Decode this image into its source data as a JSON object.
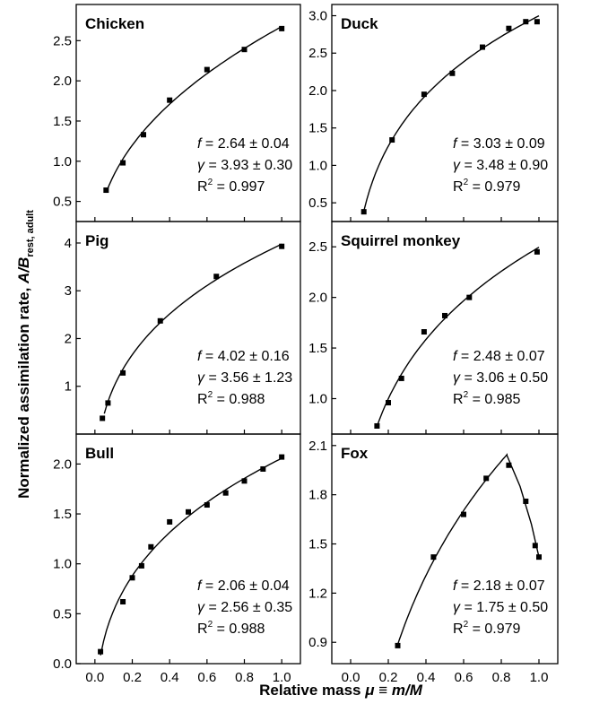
{
  "figure": {
    "ylabel_main": "Normalized assimilation rate, ",
    "ylabel_italic": "A/B",
    "ylabel_sub": "rest, adult",
    "xlabel_main": "Relative mass  ",
    "xlabel_mu": "μ",
    "xlabel_rest": " ≡ ",
    "xlabel_italic": "m/M"
  },
  "chart_data": [
    {
      "type": "scatter",
      "title": "Chicken",
      "xlim": [
        -0.1,
        1.1
      ],
      "ylim": [
        0.25,
        2.95
      ],
      "yticks": [
        "0.5",
        "1.0",
        "1.5",
        "2.0",
        "2.5"
      ],
      "ytick_values": [
        0.5,
        1.0,
        1.5,
        2.0,
        2.5
      ],
      "x": [
        0.06,
        0.15,
        0.26,
        0.4,
        0.6,
        0.8,
        1.0
      ],
      "y": [
        0.64,
        0.98,
        1.33,
        1.76,
        2.14,
        2.39,
        2.65
      ],
      "fit": {
        "f": 2.64,
        "gamma": 3.93,
        "x_start": 0.06,
        "x_end": 1.0
      },
      "stats": {
        "f": "2.64 ± 0.04",
        "gamma": "3.93 ± 0.30",
        "r2": "0.997"
      }
    },
    {
      "type": "scatter",
      "title": "Duck",
      "xlim": [
        -0.1,
        1.1
      ],
      "ylim": [
        0.25,
        3.15
      ],
      "yticks": [
        "0.5",
        "1.0",
        "1.5",
        "2.0",
        "2.5",
        "3.0"
      ],
      "ytick_values": [
        0.5,
        1.0,
        1.5,
        2.0,
        2.5,
        3.0
      ],
      "x": [
        0.07,
        0.22,
        0.39,
        0.54,
        0.7,
        0.84,
        0.93,
        0.99
      ],
      "y": [
        0.38,
        1.34,
        1.95,
        2.23,
        2.58,
        2.83,
        2.92,
        2.92
      ],
      "fit": {
        "f": 3.03,
        "gamma": 3.48,
        "x_start": 0.07,
        "x_end": 1.0
      },
      "stats": {
        "f": "3.03 ± 0.09",
        "gamma": "3.48 ± 0.90",
        "r2": "0.979"
      }
    },
    {
      "type": "scatter",
      "title": "Pig",
      "xlim": [
        -0.1,
        1.1
      ],
      "ylim": [
        0.0,
        4.45
      ],
      "yticks": [
        "1",
        "2",
        "3",
        "4"
      ],
      "ytick_values": [
        1,
        2,
        3,
        4
      ],
      "x": [
        0.04,
        0.07,
        0.15,
        0.35,
        0.65,
        1.0
      ],
      "y": [
        0.33,
        0.65,
        1.28,
        2.37,
        3.3,
        3.93
      ],
      "fit": {
        "f": 4.02,
        "gamma": 3.56,
        "x_start": 0.05,
        "x_end": 1.0
      },
      "stats": {
        "f": "4.02 ± 0.16",
        "gamma": "3.56 ± 1.23",
        "r2": "0.988"
      }
    },
    {
      "type": "scatter",
      "title": "Squirrel monkey",
      "xlim": [
        -0.1,
        1.1
      ],
      "ylim": [
        0.65,
        2.75
      ],
      "yticks": [
        "1.0",
        "1.5",
        "2.0",
        "2.5"
      ],
      "ytick_values": [
        1.0,
        1.5,
        2.0,
        2.5
      ],
      "x": [
        0.14,
        0.2,
        0.27,
        0.39,
        0.5,
        0.63,
        0.99
      ],
      "y": [
        0.73,
        0.96,
        1.2,
        1.66,
        1.82,
        2.0,
        2.45
      ],
      "fit": {
        "f": 2.48,
        "gamma": 3.06,
        "x_start": 0.14,
        "x_end": 1.0
      },
      "stats": {
        "f": "2.48 ± 0.07",
        "gamma": "3.06 ± 0.50",
        "r2": "0.985"
      }
    },
    {
      "type": "scatter",
      "title": "Bull",
      "xlim": [
        -0.1,
        1.1
      ],
      "ylim": [
        0.0,
        2.3
      ],
      "yticks": [
        "0.0",
        "0.5",
        "1.0",
        "1.5",
        "2.0"
      ],
      "ytick_values": [
        0.0,
        0.5,
        1.0,
        1.5,
        2.0
      ],
      "x": [
        0.03,
        0.15,
        0.2,
        0.25,
        0.3,
        0.4,
        0.5,
        0.6,
        0.7,
        0.8,
        0.9,
        1.0
      ],
      "y": [
        0.12,
        0.62,
        0.86,
        0.98,
        1.17,
        1.42,
        1.52,
        1.59,
        1.71,
        1.83,
        1.95,
        2.07
      ],
      "fit": {
        "f": 2.06,
        "gamma": 2.56,
        "x_start": 0.03,
        "x_end": 1.0
      },
      "stats": {
        "f": "2.06 ± 0.04",
        "gamma": "2.56 ± 0.35",
        "r2": "0.988"
      }
    },
    {
      "type": "scatter",
      "title": "Fox",
      "xlim": [
        -0.1,
        1.1
      ],
      "ylim": [
        0.77,
        2.17
      ],
      "yticks": [
        "0.9",
        "1.2",
        "1.5",
        "1.8",
        "2.1"
      ],
      "ytick_values": [
        0.9,
        1.2,
        1.5,
        1.8,
        2.1
      ],
      "x": [
        0.25,
        0.44,
        0.6,
        0.72,
        0.84,
        0.93,
        0.98,
        1.0
      ],
      "y": [
        0.88,
        1.42,
        1.68,
        1.9,
        1.98,
        1.76,
        1.49,
        1.42
      ],
      "fit": {
        "f": 2.18,
        "gamma": 1.75,
        "x_start": 0.25,
        "x_end": 0.83,
        "tail": [
          [
            0.83,
            2.04
          ],
          [
            0.9,
            1.85
          ],
          [
            0.96,
            1.62
          ],
          [
            1.0,
            1.42
          ]
        ]
      },
      "stats": {
        "f": "2.18 ± 0.07",
        "gamma": "1.75 ± 0.50",
        "r2": "0.979"
      }
    }
  ],
  "xticks": [
    "0.0",
    "0.2",
    "0.4",
    "0.6",
    "0.8",
    "1.0"
  ],
  "xtick_values": [
    0.0,
    0.2,
    0.4,
    0.6,
    0.8,
    1.0
  ],
  "stat_labels": {
    "f": "f",
    "gamma": "γ",
    "r2": "R",
    "r2_sup": "2",
    "eq": " = "
  }
}
